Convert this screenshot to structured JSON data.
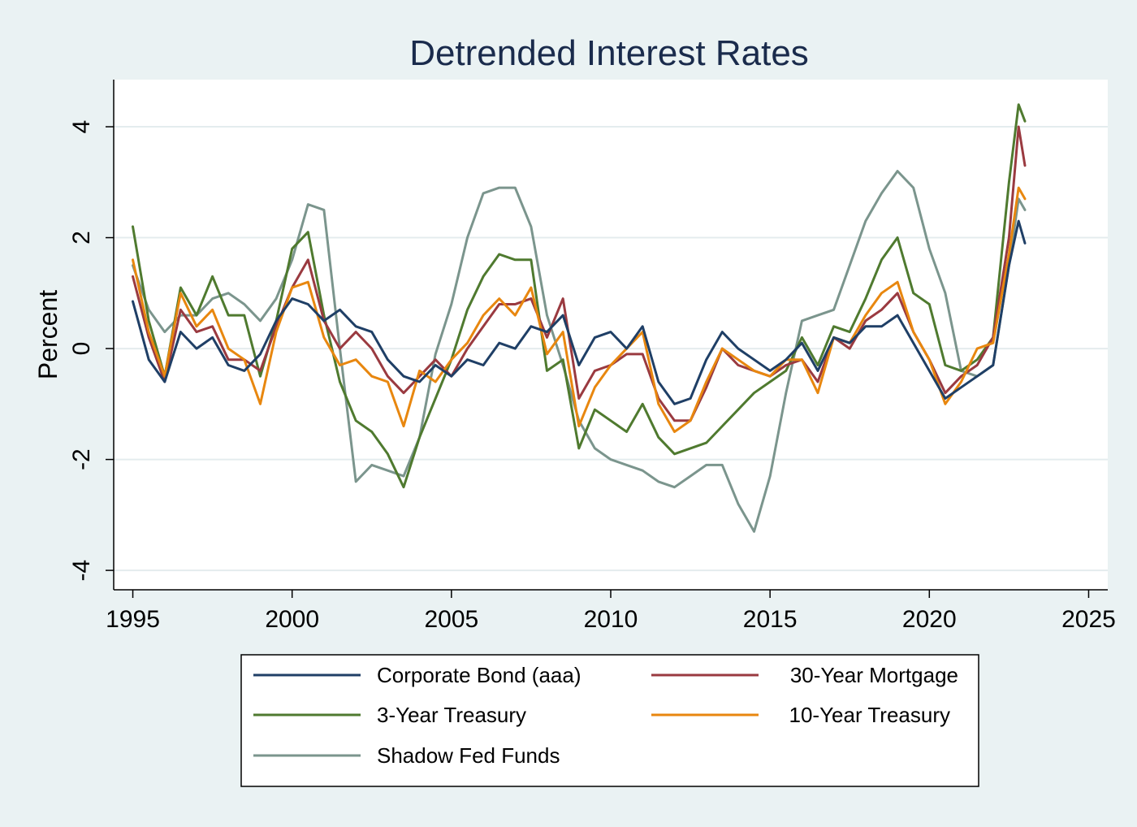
{
  "chart_data": {
    "type": "line",
    "title": "Detrended Interest Rates",
    "xlabel": "",
    "ylabel": "Percent",
    "xlim": [
      1994.4,
      2025.6
    ],
    "ylim": [
      -4.35,
      4.85
    ],
    "xticks": [
      1995,
      2000,
      2005,
      2010,
      2015,
      2020,
      2025
    ],
    "yticks": [
      4,
      2,
      0,
      -2,
      -4
    ],
    "xtick_labels": [
      "1995",
      "2000",
      "2005",
      "2010",
      "2015",
      "2020",
      "2025"
    ],
    "ytick_labels": [
      "4",
      "2",
      "0",
      "-2",
      "-4"
    ],
    "grid": true,
    "legend_position": "bottom",
    "series": [
      {
        "name": "Corporate Bond (aaa)",
        "color": "#1f3f66",
        "x": [
          1995.0,
          1995.5,
          1996.0,
          1996.5,
          1997.0,
          1997.5,
          1998.0,
          1998.5,
          1999.0,
          1999.5,
          2000.0,
          2000.5,
          2001.0,
          2001.5,
          2002.0,
          2002.5,
          2003.0,
          2003.5,
          2004.0,
          2004.5,
          2005.0,
          2005.5,
          2006.0,
          2006.5,
          2007.0,
          2007.5,
          2008.0,
          2008.5,
          2009.0,
          2009.5,
          2010.0,
          2010.5,
          2011.0,
          2011.5,
          2012.0,
          2012.5,
          2013.0,
          2013.5,
          2014.0,
          2014.5,
          2015.0,
          2015.5,
          2016.0,
          2016.5,
          2017.0,
          2017.5,
          2018.0,
          2018.5,
          2019.0,
          2019.5,
          2020.0,
          2020.5,
          2021.0,
          2021.5,
          2022.0,
          2022.5,
          2022.8,
          2023.0
        ],
        "values": [
          0.85,
          -0.2,
          -0.6,
          0.3,
          0.0,
          0.2,
          -0.3,
          -0.4,
          -0.1,
          0.5,
          0.9,
          0.8,
          0.5,
          0.7,
          0.4,
          0.3,
          -0.2,
          -0.5,
          -0.6,
          -0.3,
          -0.5,
          -0.2,
          -0.3,
          0.1,
          0.0,
          0.4,
          0.3,
          0.6,
          -0.3,
          0.2,
          0.3,
          0.0,
          0.4,
          -0.6,
          -1.0,
          -0.9,
          -0.2,
          0.3,
          0.0,
          -0.2,
          -0.4,
          -0.2,
          0.1,
          -0.4,
          0.2,
          0.1,
          0.4,
          0.4,
          0.6,
          0.1,
          -0.4,
          -0.9,
          -0.7,
          -0.5,
          -0.3,
          1.5,
          2.3,
          1.9
        ]
      },
      {
        "name": "30-Year Mortgage",
        "color": "#9a3a40",
        "x": [
          1995.0,
          1995.5,
          1996.0,
          1996.5,
          1997.0,
          1997.5,
          1998.0,
          1998.5,
          1999.0,
          1999.5,
          2000.0,
          2000.5,
          2001.0,
          2001.5,
          2002.0,
          2002.5,
          2003.0,
          2003.5,
          2004.0,
          2004.5,
          2005.0,
          2005.5,
          2006.0,
          2006.5,
          2007.0,
          2007.5,
          2008.0,
          2008.5,
          2009.0,
          2009.5,
          2010.0,
          2010.5,
          2011.0,
          2011.5,
          2012.0,
          2012.5,
          2013.0,
          2013.5,
          2014.0,
          2014.5,
          2015.0,
          2015.5,
          2016.0,
          2016.5,
          2017.0,
          2017.5,
          2018.0,
          2018.5,
          2019.0,
          2019.5,
          2020.0,
          2020.5,
          2021.0,
          2021.5,
          2022.0,
          2022.5,
          2022.8,
          2023.0
        ],
        "values": [
          1.3,
          0.2,
          -0.6,
          0.7,
          0.3,
          0.4,
          -0.2,
          -0.2,
          -0.4,
          0.4,
          1.1,
          1.6,
          0.5,
          0.0,
          0.3,
          0.0,
          -0.5,
          -0.8,
          -0.5,
          -0.2,
          -0.5,
          0.0,
          0.4,
          0.8,
          0.8,
          0.9,
          0.2,
          0.9,
          -0.9,
          -0.4,
          -0.3,
          -0.1,
          -0.1,
          -0.9,
          -1.3,
          -1.3,
          -0.7,
          0.0,
          -0.3,
          -0.4,
          -0.5,
          -0.3,
          -0.2,
          -0.6,
          0.2,
          0.0,
          0.5,
          0.7,
          1.0,
          0.3,
          -0.2,
          -0.8,
          -0.5,
          -0.3,
          0.2,
          2.0,
          4.0,
          3.3
        ]
      },
      {
        "name": "3-Year Treasury",
        "color": "#4f7a2f",
        "x": [
          1995.0,
          1995.5,
          1996.0,
          1996.5,
          1997.0,
          1997.5,
          1998.0,
          1998.5,
          1999.0,
          1999.5,
          2000.0,
          2000.5,
          2001.0,
          2001.5,
          2002.0,
          2002.5,
          2003.0,
          2003.5,
          2004.0,
          2004.5,
          2005.0,
          2005.5,
          2006.0,
          2006.5,
          2007.0,
          2007.5,
          2008.0,
          2008.5,
          2009.0,
          2009.5,
          2010.0,
          2010.5,
          2011.0,
          2011.5,
          2012.0,
          2012.5,
          2013.0,
          2013.5,
          2014.0,
          2014.5,
          2015.0,
          2015.5,
          2016.0,
          2016.5,
          2017.0,
          2017.5,
          2018.0,
          2018.5,
          2019.0,
          2019.5,
          2020.0,
          2020.5,
          2021.0,
          2021.5,
          2022.0,
          2022.5,
          2022.8,
          2023.0
        ],
        "values": [
          2.2,
          0.5,
          -0.5,
          1.1,
          0.6,
          1.3,
          0.6,
          0.6,
          -0.5,
          0.5,
          1.8,
          2.1,
          0.6,
          -0.6,
          -1.3,
          -1.5,
          -1.9,
          -2.5,
          -1.6,
          -0.9,
          -0.2,
          0.7,
          1.3,
          1.7,
          1.6,
          1.6,
          -0.4,
          -0.2,
          -1.8,
          -1.1,
          -1.3,
          -1.5,
          -1.0,
          -1.6,
          -1.9,
          -1.8,
          -1.7,
          -1.4,
          -1.1,
          -0.8,
          -0.6,
          -0.4,
          0.2,
          -0.3,
          0.4,
          0.3,
          0.9,
          1.6,
          2.0,
          1.0,
          0.8,
          -0.3,
          -0.4,
          -0.2,
          0.2,
          3.0,
          4.4,
          4.1
        ]
      },
      {
        "name": "10-Year Treasury",
        "color": "#e8870f",
        "x": [
          1995.0,
          1995.5,
          1996.0,
          1996.5,
          1997.0,
          1997.5,
          1998.0,
          1998.5,
          1999.0,
          1999.5,
          2000.0,
          2000.5,
          2001.0,
          2001.5,
          2002.0,
          2002.5,
          2003.0,
          2003.5,
          2004.0,
          2004.5,
          2005.0,
          2005.5,
          2006.0,
          2006.5,
          2007.0,
          2007.5,
          2008.0,
          2008.5,
          2009.0,
          2009.5,
          2010.0,
          2010.5,
          2011.0,
          2011.5,
          2012.0,
          2012.5,
          2013.0,
          2013.5,
          2014.0,
          2014.5,
          2015.0,
          2015.5,
          2016.0,
          2016.5,
          2017.0,
          2017.5,
          2018.0,
          2018.5,
          2019.0,
          2019.5,
          2020.0,
          2020.5,
          2021.0,
          2021.5,
          2022.0,
          2022.5,
          2022.8,
          2023.0
        ],
        "values": [
          1.6,
          0.3,
          -0.5,
          1.0,
          0.4,
          0.7,
          0.0,
          -0.2,
          -1.0,
          0.3,
          1.1,
          1.2,
          0.2,
          -0.3,
          -0.2,
          -0.5,
          -0.6,
          -1.4,
          -0.4,
          -0.6,
          -0.2,
          0.1,
          0.6,
          0.9,
          0.6,
          1.1,
          -0.1,
          0.3,
          -1.4,
          -0.7,
          -0.3,
          0.0,
          0.3,
          -1.0,
          -1.5,
          -1.3,
          -0.6,
          0.0,
          -0.2,
          -0.4,
          -0.5,
          -0.2,
          -0.2,
          -0.8,
          0.2,
          0.1,
          0.6,
          1.0,
          1.2,
          0.3,
          -0.2,
          -1.0,
          -0.6,
          0.0,
          0.1,
          1.7,
          2.9,
          2.7
        ]
      },
      {
        "name": "Shadow Fed Funds",
        "color": "#7b958d",
        "x": [
          1995.0,
          1995.5,
          1996.0,
          1996.5,
          1997.0,
          1997.5,
          1998.0,
          1998.5,
          1999.0,
          1999.5,
          2000.0,
          2000.5,
          2001.0,
          2001.5,
          2002.0,
          2002.5,
          2003.0,
          2003.5,
          2004.0,
          2004.5,
          2005.0,
          2005.5,
          2006.0,
          2006.5,
          2007.0,
          2007.5,
          2008.0,
          2008.5,
          2009.0,
          2009.5,
          2010.0,
          2010.5,
          2011.0,
          2011.5,
          2012.0,
          2012.5,
          2013.0,
          2013.5,
          2014.0,
          2014.5,
          2015.0,
          2015.5,
          2016.0,
          2016.5,
          2017.0,
          2017.5,
          2018.0,
          2018.5,
          2019.0,
          2019.5,
          2020.0,
          2020.5,
          2021.0,
          2021.5,
          2022.0,
          2022.5,
          2022.8,
          2023.0
        ],
        "values": [
          1.5,
          0.7,
          0.3,
          0.6,
          0.6,
          0.9,
          1.0,
          0.8,
          0.5,
          0.9,
          1.6,
          2.6,
          2.5,
          0.0,
          -2.4,
          -2.1,
          -2.2,
          -2.3,
          -1.6,
          -0.1,
          0.8,
          2.0,
          2.8,
          2.9,
          2.9,
          2.2,
          0.6,
          -0.3,
          -1.3,
          -1.8,
          -2.0,
          -2.1,
          -2.2,
          -2.4,
          -2.5,
          -2.3,
          -2.1,
          -2.1,
          -2.8,
          -3.3,
          -2.3,
          -0.8,
          0.5,
          0.6,
          0.7,
          1.5,
          2.3,
          2.8,
          3.2,
          2.9,
          1.8,
          1.0,
          -0.4,
          -0.5,
          -0.3,
          1.5,
          2.7,
          2.5
        ]
      }
    ]
  }
}
